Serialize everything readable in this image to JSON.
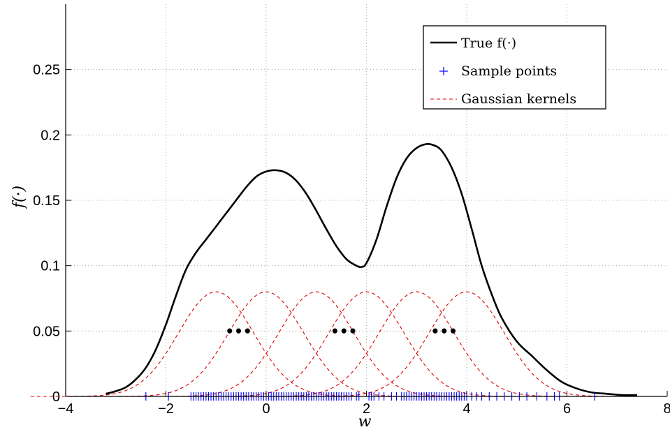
{
  "chart_data": {
    "type": "line",
    "xlabel": "w",
    "ylabel": "f(·)",
    "xlim": [
      -4,
      8
    ],
    "ylim": [
      0,
      0.3
    ],
    "xticks": [
      -4,
      -2,
      0,
      2,
      4,
      6,
      8
    ],
    "xtick_labels": [
      "−4",
      "−2",
      "0",
      "2",
      "4",
      "6",
      "8"
    ],
    "yticks": [
      0,
      0.05,
      0.1,
      0.15,
      0.2,
      0.25
    ],
    "ytick_labels": [
      "0",
      "0.05",
      "0.1",
      "0.15",
      "0.2",
      "0.25"
    ],
    "grid": true,
    "legend_position": "top-right",
    "series": [
      {
        "name": "True f(·)",
        "style": "solid",
        "color": "#000000",
        "x": [
          -3.2,
          -3.0,
          -2.8,
          -2.6,
          -2.4,
          -2.2,
          -2.0,
          -1.8,
          -1.6,
          -1.4,
          -1.2,
          -1.0,
          -0.8,
          -0.6,
          -0.4,
          -0.2,
          0.0,
          0.2,
          0.4,
          0.6,
          0.8,
          1.0,
          1.2,
          1.4,
          1.6,
          1.8,
          1.9,
          2.0,
          2.2,
          2.4,
          2.6,
          2.8,
          3.0,
          3.2,
          3.35,
          3.5,
          3.7,
          3.9,
          4.1,
          4.3,
          4.5,
          4.7,
          5.0,
          5.3,
          5.6,
          5.9,
          6.2,
          6.5,
          6.8,
          7.1,
          7.4
        ],
        "y": [
          0.002,
          0.004,
          0.007,
          0.013,
          0.022,
          0.036,
          0.055,
          0.077,
          0.097,
          0.11,
          0.12,
          0.13,
          0.14,
          0.15,
          0.16,
          0.168,
          0.172,
          0.173,
          0.171,
          0.165,
          0.155,
          0.142,
          0.128,
          0.115,
          0.105,
          0.1,
          0.099,
          0.102,
          0.12,
          0.145,
          0.167,
          0.182,
          0.19,
          0.193,
          0.192,
          0.188,
          0.175,
          0.155,
          0.128,
          0.1,
          0.078,
          0.06,
          0.042,
          0.031,
          0.02,
          0.011,
          0.006,
          0.003,
          0.002,
          0.001,
          0.001
        ]
      }
    ],
    "sample_points": {
      "name": "Sample points",
      "color": "#0000ff",
      "x": [
        -2.4,
        -1.95,
        -1.5,
        -1.45,
        -1.4,
        -1.35,
        -1.3,
        -1.25,
        -1.2,
        -1.15,
        -1.1,
        -1.05,
        -1.0,
        -0.95,
        -0.9,
        -0.85,
        -0.8,
        -0.75,
        -0.7,
        -0.65,
        -0.6,
        -0.55,
        -0.5,
        -0.45,
        -0.4,
        -0.35,
        -0.3,
        -0.25,
        -0.2,
        -0.15,
        -0.1,
        -0.05,
        0.0,
        0.05,
        0.1,
        0.15,
        0.2,
        0.25,
        0.3,
        0.35,
        0.4,
        0.45,
        0.5,
        0.55,
        0.6,
        0.65,
        0.7,
        0.75,
        0.8,
        0.85,
        0.9,
        0.95,
        1.0,
        1.05,
        1.1,
        1.15,
        1.2,
        1.25,
        1.3,
        1.35,
        1.4,
        1.45,
        1.5,
        1.55,
        1.6,
        1.65,
        1.7,
        1.8,
        1.85,
        2.05,
        2.1,
        2.15,
        2.25,
        2.35,
        2.5,
        2.6,
        2.7,
        2.75,
        2.8,
        2.85,
        2.9,
        2.95,
        3.0,
        3.05,
        3.1,
        3.15,
        3.2,
        3.25,
        3.3,
        3.35,
        3.4,
        3.45,
        3.5,
        3.55,
        3.6,
        3.65,
        3.7,
        3.75,
        3.8,
        3.85,
        3.9,
        3.95,
        4.0,
        4.1,
        4.2,
        4.3,
        4.45,
        4.6,
        4.75,
        4.9,
        5.05,
        5.2,
        5.4,
        5.6,
        5.75,
        5.85,
        6.55
      ]
    },
    "kernels": {
      "name": "Gaussian kernels",
      "color": "#dd0000",
      "style": "dashed",
      "centers": [
        -1,
        0,
        1,
        2,
        3,
        4
      ],
      "peak": 0.08,
      "sigma": 0.75
    },
    "ellipsis": [
      {
        "x": -0.55,
        "y": 0.05,
        "text": "•••"
      },
      {
        "x": 1.55,
        "y": 0.05,
        "text": "•••"
      },
      {
        "x": 3.55,
        "y": 0.05,
        "text": "•••"
      }
    ]
  }
}
